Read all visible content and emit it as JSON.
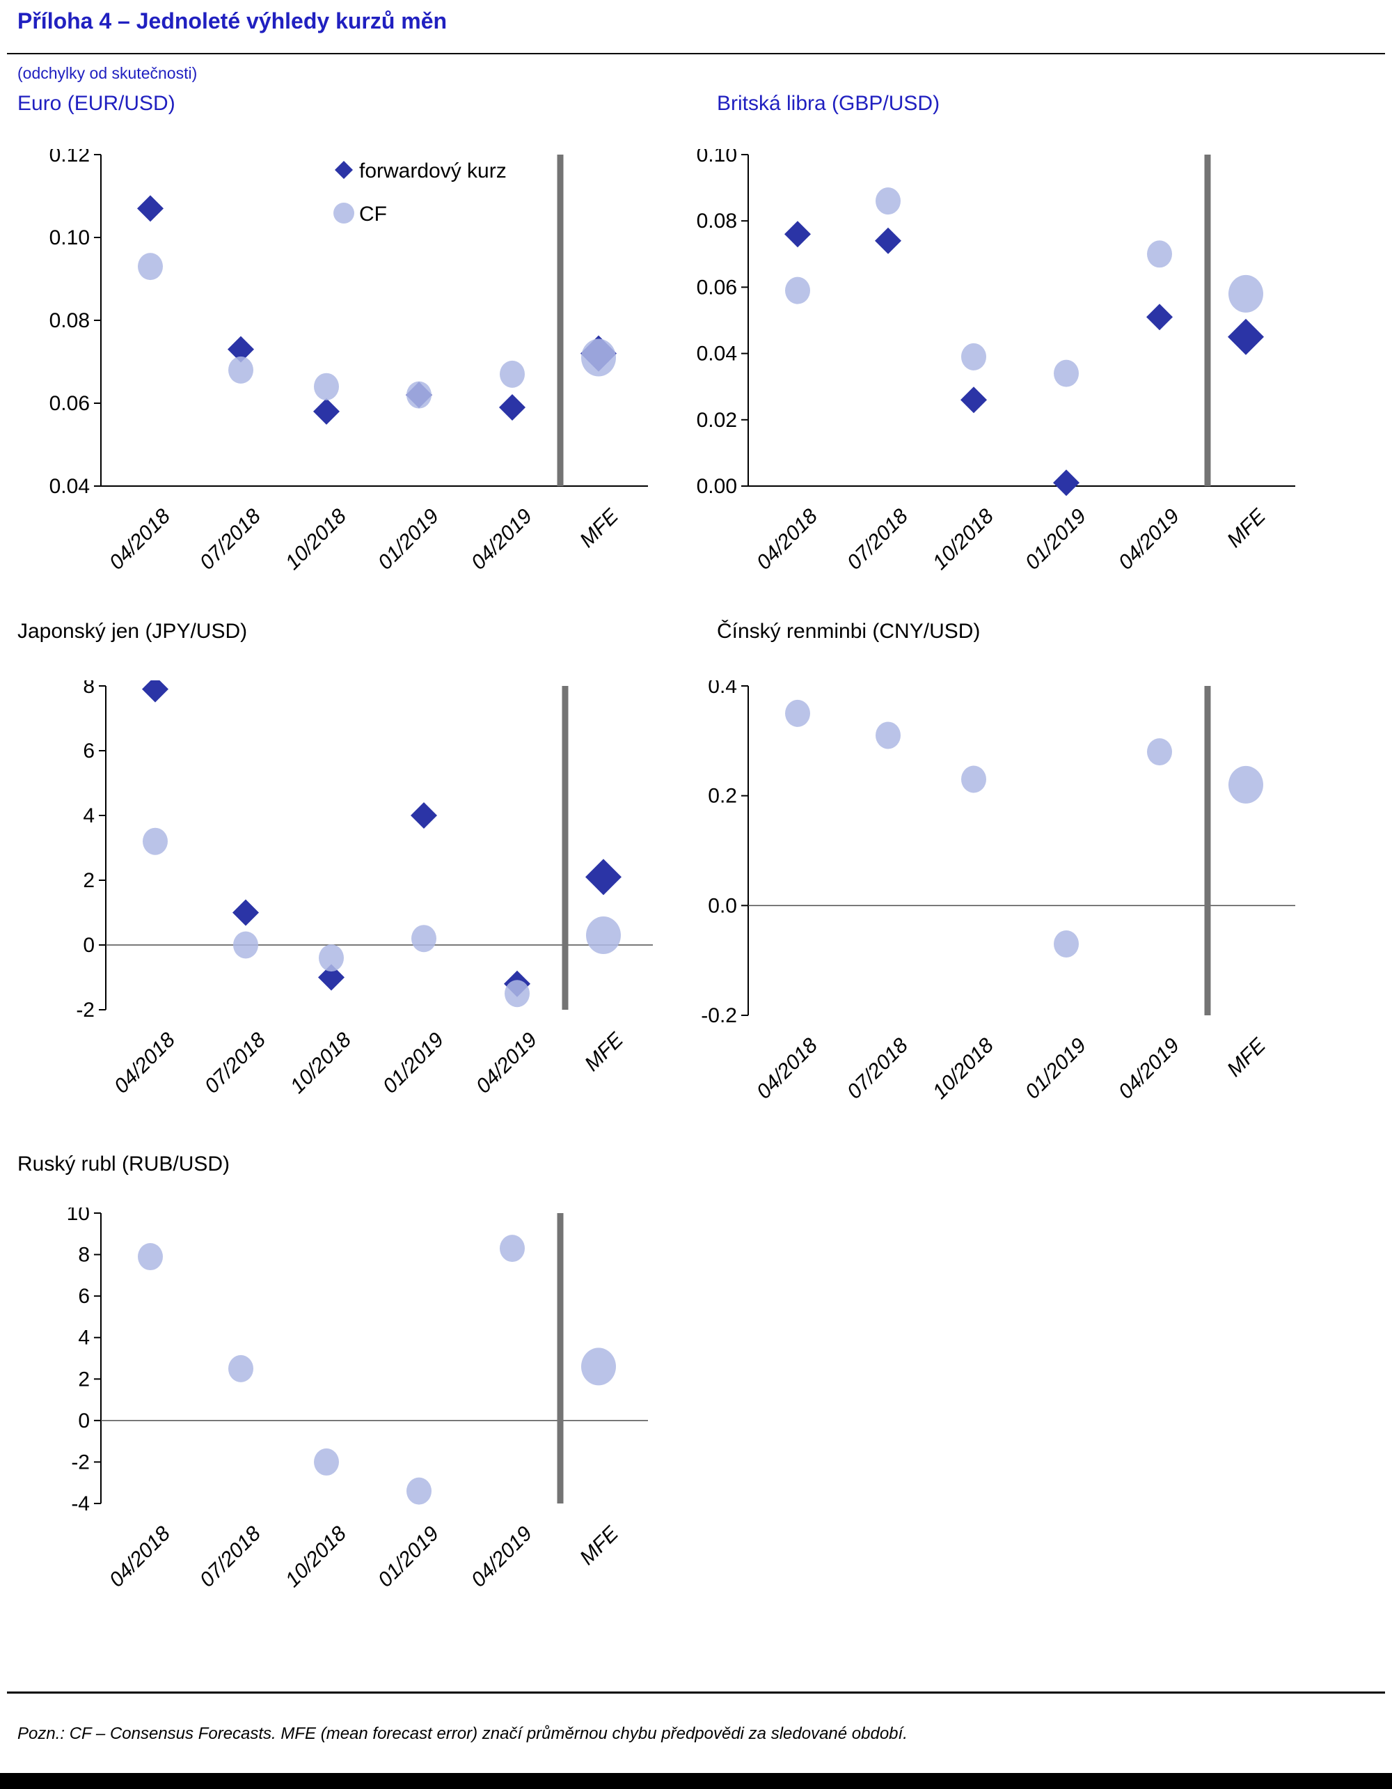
{
  "page": {
    "title": "Příloha 4 – Jednoleté výhledy kurzů měn",
    "subtitle": "(odchylky od skutečnosti)",
    "note": "Pozn.: CF – Consensus Forecasts. MFE (mean forecast error) značí průměrnou chybu předpovědi za sledované období."
  },
  "categories": [
    "04/2018",
    "07/2018",
    "10/2018",
    "01/2019",
    "04/2019"
  ],
  "mfe_label": "MFE",
  "colors": {
    "title_blue": "#2020c0",
    "forward": "#2b34a6",
    "cf": "#aeb9e4",
    "separator": "#747474",
    "zero_line": "#4d4d4d",
    "axis": "#000000"
  },
  "chart_data": [
    {
      "type": "scatter",
      "title": "Euro (EUR/USD)",
      "ylim": [
        0.04,
        0.12
      ],
      "ytick_values": [
        0.04,
        0.06,
        0.08,
        0.1,
        0.12
      ],
      "ytick_labels": [
        "0.04",
        "0.06",
        "0.08",
        "0.10",
        "0.12"
      ],
      "baseline": true,
      "zero_line": false,
      "show_legend": true,
      "legend_position": "top-right-inside",
      "series": [
        {
          "name": "forwardový kurz",
          "marker": "diamond",
          "values": [
            0.107,
            0.073,
            0.058,
            0.062,
            0.059
          ],
          "mfe": 0.072
        },
        {
          "name": "CF",
          "marker": "circle",
          "values": [
            0.093,
            0.068,
            0.064,
            0.062,
            0.067
          ],
          "mfe": 0.071
        }
      ]
    },
    {
      "type": "scatter",
      "title": "Britská libra (GBP/USD)",
      "ylim": [
        0.0,
        0.1
      ],
      "ytick_values": [
        0.0,
        0.02,
        0.04,
        0.06,
        0.08,
        0.1
      ],
      "ytick_labels": [
        "0.00",
        "0.02",
        "0.04",
        "0.06",
        "0.08",
        "0.10"
      ],
      "baseline": true,
      "zero_line": false,
      "show_legend": false,
      "series": [
        {
          "name": "forwardový kurz",
          "marker": "diamond",
          "values": [
            0.076,
            0.074,
            0.026,
            0.001,
            0.051
          ],
          "mfe": 0.045
        },
        {
          "name": "CF",
          "marker": "circle",
          "values": [
            0.059,
            0.086,
            0.039,
            0.034,
            0.07
          ],
          "mfe": 0.058
        }
      ]
    },
    {
      "type": "scatter",
      "title": "Japonský jen (JPY/USD)",
      "ylim": [
        -2,
        8
      ],
      "ytick_values": [
        -2,
        0,
        2,
        4,
        6,
        8
      ],
      "ytick_labels": [
        "-2",
        "0",
        "2",
        "4",
        "6",
        "8"
      ],
      "baseline": false,
      "zero_line": true,
      "show_legend": false,
      "series": [
        {
          "name": "forwardový kurz",
          "marker": "diamond",
          "values": [
            7.9,
            1.0,
            -1.0,
            4.0,
            -1.2
          ],
          "mfe": 2.1
        },
        {
          "name": "CF",
          "marker": "circle",
          "values": [
            3.2,
            0.0,
            -0.4,
            0.2,
            -1.5
          ],
          "mfe": 0.3
        }
      ]
    },
    {
      "type": "scatter",
      "title": "Čínský renminbi (CNY/USD)",
      "ylim": [
        -0.2,
        0.4
      ],
      "ytick_values": [
        -0.2,
        0.0,
        0.2,
        0.4
      ],
      "ytick_labels": [
        "-0.2",
        "0.0",
        "0.2",
        "0.4"
      ],
      "baseline": false,
      "zero_line": true,
      "show_legend": false,
      "series": [
        {
          "name": "CF",
          "marker": "circle",
          "values": [
            0.35,
            0.31,
            0.23,
            -0.07,
            0.28
          ],
          "mfe": 0.22
        }
      ]
    },
    {
      "type": "scatter",
      "title": "Ruský rubl (RUB/USD)",
      "ylim": [
        -4,
        10
      ],
      "ytick_values": [
        -4,
        -2,
        0,
        2,
        4,
        6,
        8,
        10
      ],
      "ytick_labels": [
        "-4",
        "-2",
        "0",
        "2",
        "4",
        "6",
        "8",
        "10"
      ],
      "baseline": false,
      "zero_line": true,
      "show_legend": false,
      "series": [
        {
          "name": "CF",
          "marker": "circle",
          "values": [
            7.9,
            2.5,
            -2.0,
            -3.4,
            8.3
          ],
          "mfe": 2.6
        }
      ]
    }
  ]
}
